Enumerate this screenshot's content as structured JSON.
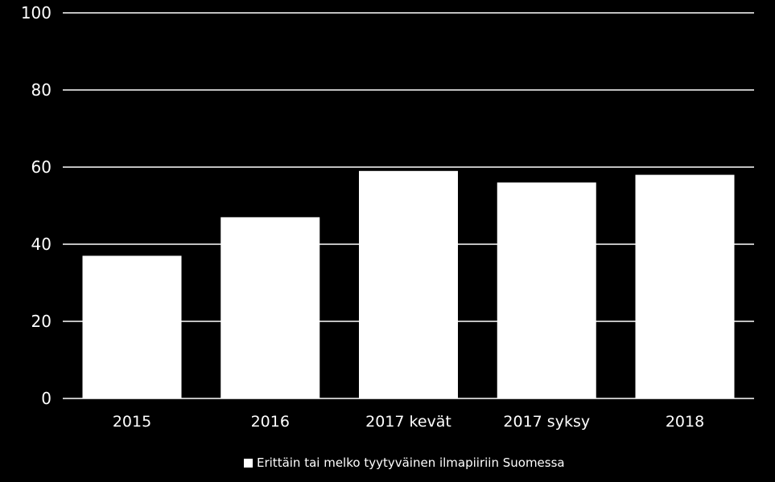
{
  "chart_data": {
    "type": "bar",
    "title": "",
    "xlabel": "",
    "ylabel": "",
    "categories": [
      "2015",
      "2016",
      "2017 kevät",
      "2017 syksy",
      "2018"
    ],
    "series": [
      {
        "name": "Erittäin tai melko tyytyväinen ilmapiiriin Suomessa",
        "values": [
          37,
          47,
          59,
          56,
          58
        ]
      }
    ],
    "ylim": [
      0,
      100
    ],
    "yticks": [
      "0",
      "20",
      "40",
      "60",
      "80",
      "100"
    ],
    "grid": true,
    "legend_position": "bottom-center",
    "colors": {
      "background": "#000000",
      "bar": "#ffffff",
      "grid": "#ffffff",
      "text": "#ffffff"
    }
  }
}
